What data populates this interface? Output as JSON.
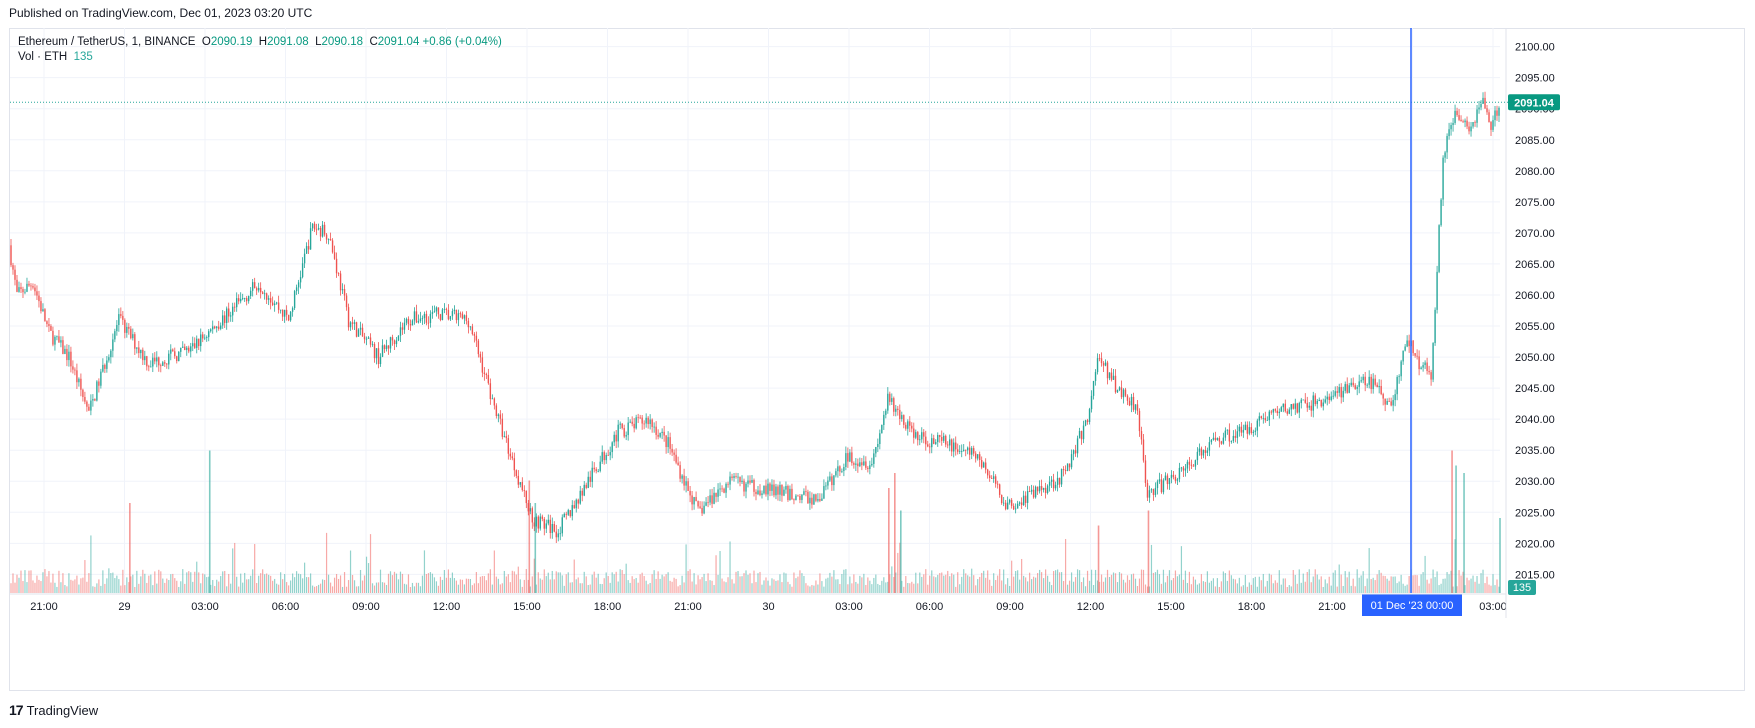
{
  "header": {
    "published": "Published on TradingView.com, Dec 01, 2023 03:20 UTC"
  },
  "legend": {
    "symbol": "Ethereum / TetherUS, 1, BINANCE",
    "o_label": "O",
    "o_value": "2090.19",
    "h_label": "H",
    "h_value": "2091.08",
    "l_label": "L",
    "l_value": "2090.18",
    "c_label": "C",
    "c_value": "2091.04",
    "change": "+0.86 (+0.04%)",
    "vol_label": "Vol · ETH",
    "vol_value": "135"
  },
  "footer": {
    "brand": "TradingView",
    "logo": "17"
  },
  "colors": {
    "up": "#26a69a",
    "down": "#ef5350",
    "crosshair": "#2962ff",
    "grid": "#f0f3fa",
    "axis_text": "#131722"
  },
  "chart_data": {
    "type": "candlestick",
    "title": "Ethereum / TetherUS, 1, BINANCE",
    "interval": "1 minute",
    "ylim": [
      2012,
      2103
    ],
    "y_ticks": [
      "2100.00",
      "2095.00",
      "2090.00",
      "2085.00",
      "2080.00",
      "2075.00",
      "2070.00",
      "2065.00",
      "2060.00",
      "2055.00",
      "2050.00",
      "2045.00",
      "2040.00",
      "2035.00",
      "2030.00",
      "2025.00",
      "2020.00",
      "2015.00"
    ],
    "x_ticks": [
      "21:00",
      "29",
      "03:00",
      "06:00",
      "09:00",
      "12:00",
      "15:00",
      "18:00",
      "21:00",
      "30",
      "03:00",
      "06:00",
      "09:00",
      "12:00",
      "15:00",
      "18:00",
      "21:00",
      "00:00",
      "03:00"
    ],
    "last_price": "2091.04",
    "last_volume": "135",
    "crosshair_label": "01 Dec '23   00:00",
    "price_path": [
      {
        "x": 0,
        "y": 2068
      },
      {
        "x": 4,
        "y": 2060
      },
      {
        "x": 12,
        "y": 2062
      },
      {
        "x": 20,
        "y": 2054
      },
      {
        "x": 30,
        "y": 2050
      },
      {
        "x": 40,
        "y": 2041
      },
      {
        "x": 55,
        "y": 2056
      },
      {
        "x": 70,
        "y": 2049
      },
      {
        "x": 90,
        "y": 2051
      },
      {
        "x": 110,
        "y": 2057
      },
      {
        "x": 125,
        "y": 2062
      },
      {
        "x": 140,
        "y": 2056
      },
      {
        "x": 152,
        "y": 2071
      },
      {
        "x": 160,
        "y": 2070
      },
      {
        "x": 170,
        "y": 2056
      },
      {
        "x": 185,
        "y": 2050
      },
      {
        "x": 200,
        "y": 2056
      },
      {
        "x": 215,
        "y": 2057
      },
      {
        "x": 230,
        "y": 2056
      },
      {
        "x": 245,
        "y": 2040
      },
      {
        "x": 262,
        "y": 2024
      },
      {
        "x": 275,
        "y": 2022
      },
      {
        "x": 290,
        "y": 2030
      },
      {
        "x": 305,
        "y": 2038
      },
      {
        "x": 320,
        "y": 2040
      },
      {
        "x": 330,
        "y": 2036
      },
      {
        "x": 345,
        "y": 2025
      },
      {
        "x": 360,
        "y": 2030
      },
      {
        "x": 375,
        "y": 2029
      },
      {
        "x": 390,
        "y": 2028
      },
      {
        "x": 405,
        "y": 2027
      },
      {
        "x": 420,
        "y": 2034
      },
      {
        "x": 432,
        "y": 2033
      },
      {
        "x": 440,
        "y": 2043
      },
      {
        "x": 455,
        "y": 2037
      },
      {
        "x": 470,
        "y": 2036
      },
      {
        "x": 485,
        "y": 2034
      },
      {
        "x": 500,
        "y": 2026
      },
      {
        "x": 512,
        "y": 2028
      },
      {
        "x": 528,
        "y": 2031
      },
      {
        "x": 540,
        "y": 2040
      },
      {
        "x": 545,
        "y": 2050
      },
      {
        "x": 555,
        "y": 2045
      },
      {
        "x": 565,
        "y": 2042
      },
      {
        "x": 570,
        "y": 2028
      },
      {
        "x": 580,
        "y": 2030
      },
      {
        "x": 592,
        "y": 2033
      },
      {
        "x": 605,
        "y": 2037
      },
      {
        "x": 618,
        "y": 2038
      },
      {
        "x": 632,
        "y": 2041
      },
      {
        "x": 645,
        "y": 2042
      },
      {
        "x": 658,
        "y": 2043
      },
      {
        "x": 670,
        "y": 2045
      },
      {
        "x": 682,
        "y": 2046
      },
      {
        "x": 692,
        "y": 2042
      },
      {
        "x": 700,
        "y": 2053
      },
      {
        "x": 706,
        "y": 2049
      },
      {
        "x": 712,
        "y": 2047
      },
      {
        "x": 718,
        "y": 2082
      },
      {
        "x": 724,
        "y": 2090
      },
      {
        "x": 732,
        "y": 2087
      },
      {
        "x": 738,
        "y": 2092
      },
      {
        "x": 742,
        "y": 2086
      },
      {
        "x": 746,
        "y": 2091.04
      }
    ],
    "volume_spikes": [
      {
        "x": 100,
        "v": 0.95,
        "up": true
      },
      {
        "x": 60,
        "v": 0.6,
        "up": false
      },
      {
        "x": 260,
        "v": 0.75,
        "up": false
      },
      {
        "x": 263,
        "v": 0.6,
        "up": true
      },
      {
        "x": 440,
        "v": 0.7,
        "up": false
      },
      {
        "x": 443,
        "v": 0.8,
        "up": false
      },
      {
        "x": 446,
        "v": 0.55,
        "up": true
      },
      {
        "x": 545,
        "v": 0.45,
        "up": false
      },
      {
        "x": 570,
        "v": 0.55,
        "up": false
      },
      {
        "x": 722,
        "v": 0.95,
        "up": false
      },
      {
        "x": 724,
        "v": 0.85,
        "up": true
      },
      {
        "x": 728,
        "v": 0.8,
        "up": true
      },
      {
        "x": 746,
        "v": 0.5,
        "up": true
      }
    ]
  }
}
